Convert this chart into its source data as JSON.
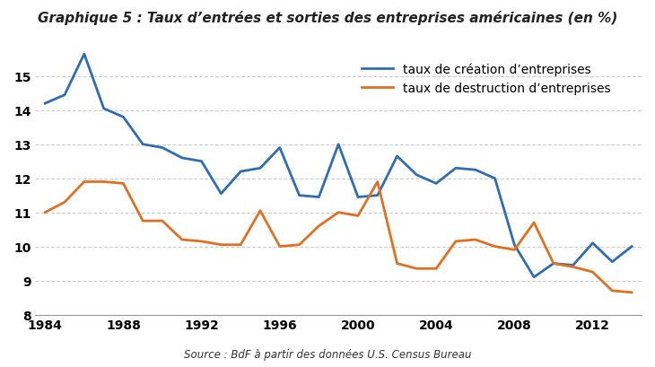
{
  "title": "Graphique 5 : Taux d’entrées et sorties des entreprises américaines (en %)",
  "source": "Source : BdF à partir des données U.S. Census Bureau",
  "creation_label": "taux de création d’entreprises",
  "destruction_label": "taux de destruction d’entreprises",
  "creation_color": "#2e6db4",
  "destruction_color": "#e07020",
  "years": [
    1984,
    1985,
    1986,
    1987,
    1988,
    1989,
    1990,
    1991,
    1992,
    1993,
    1994,
    1995,
    1996,
    1997,
    1998,
    1999,
    2000,
    2001,
    2002,
    2003,
    2004,
    2005,
    2006,
    2007,
    2008,
    2009,
    2010,
    2011,
    2012,
    2013,
    2014
  ],
  "creation": [
    14.2,
    14.45,
    15.65,
    14.05,
    13.8,
    13.0,
    12.9,
    12.6,
    12.5,
    11.55,
    12.2,
    12.3,
    12.9,
    11.5,
    11.45,
    13.0,
    11.45,
    11.5,
    12.65,
    12.1,
    11.85,
    12.3,
    12.25,
    12.0,
    10.05,
    9.1,
    9.5,
    9.45,
    10.1,
    9.55,
    10.0
  ],
  "destruction": [
    11.0,
    11.3,
    11.9,
    11.9,
    11.85,
    10.75,
    10.75,
    10.2,
    10.15,
    10.05,
    10.05,
    11.05,
    10.0,
    10.05,
    10.6,
    11.0,
    10.9,
    11.9,
    9.5,
    9.35,
    9.35,
    10.15,
    10.2,
    10.0,
    9.9,
    10.7,
    9.5,
    9.4,
    9.25,
    8.7,
    8.65
  ],
  "ylim": [
    8,
    16
  ],
  "yticks": [
    8,
    9,
    10,
    11,
    12,
    13,
    14,
    15
  ],
  "xticks": [
    1984,
    1988,
    1992,
    1996,
    2000,
    2004,
    2008,
    2012
  ],
  "background_color": "#ffffff",
  "grid_color": "#cccccc",
  "line_width": 2.0,
  "title_fontsize": 11,
  "tick_fontsize": 10,
  "legend_fontsize": 10
}
